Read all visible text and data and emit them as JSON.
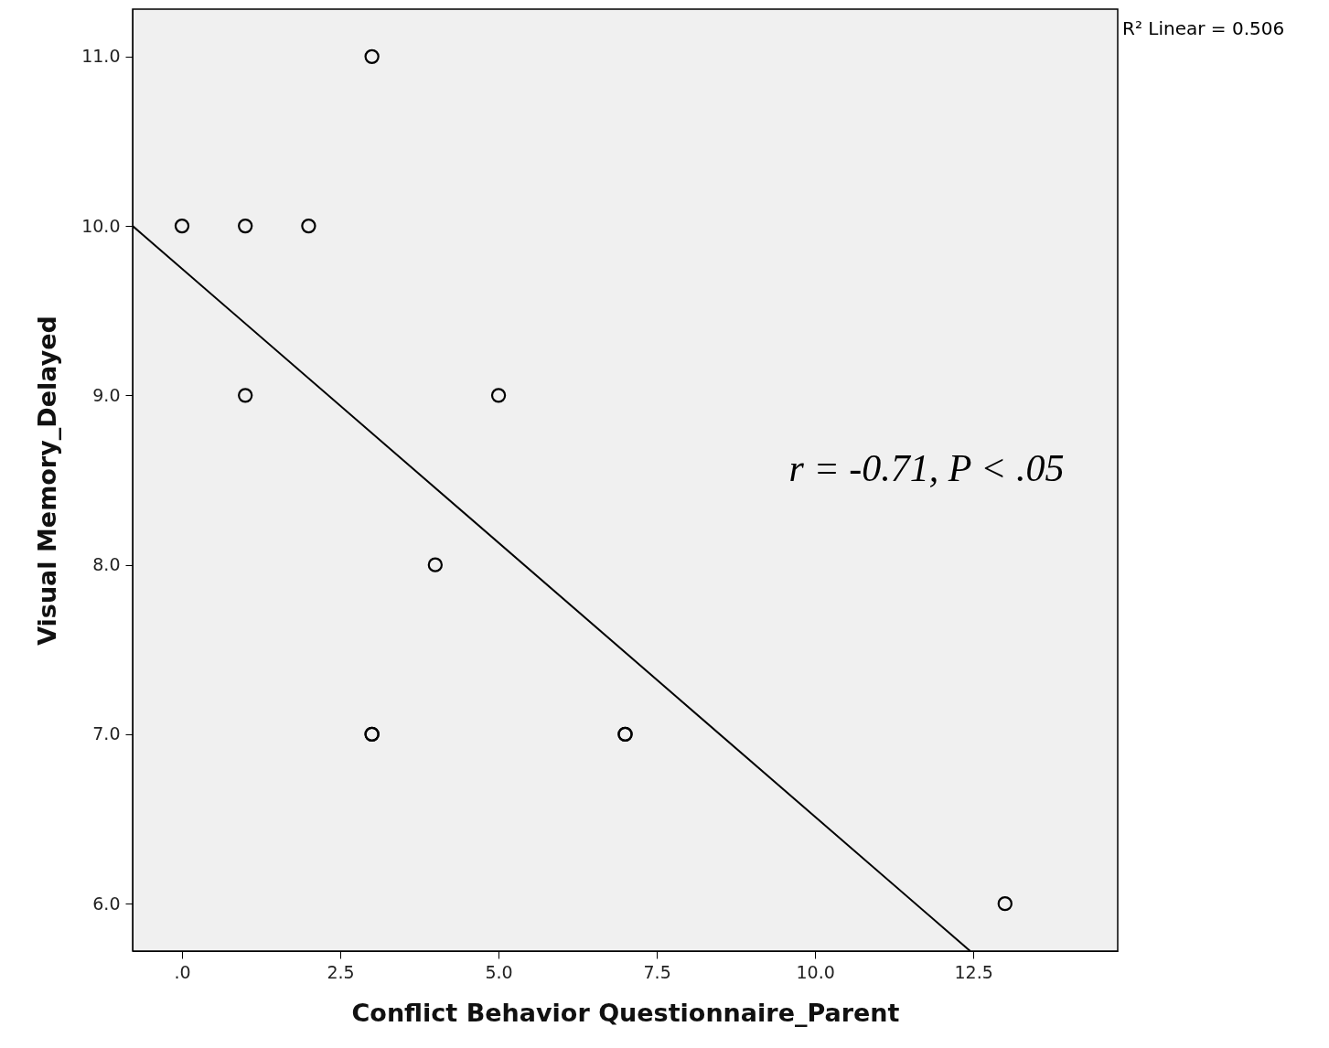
{
  "chart_data": {
    "type": "scatter",
    "xlabel": "Conflict Behavior Questionnaire_Parent",
    "ylabel": "Visual Memory_Delayed",
    "series": [
      {
        "marker": "circle",
        "color": "#000000",
        "x": [
          0,
          1,
          2,
          3,
          1,
          5,
          4,
          3,
          3,
          7,
          7,
          13
        ],
        "values": [
          10,
          10,
          10,
          11,
          9,
          9,
          8,
          7,
          7,
          7,
          7,
          6
        ]
      },
      {
        "type": "line",
        "color": "#000000",
        "x": [
          -0.78,
          12.45
        ],
        "values": [
          10.0,
          5.72
        ]
      }
    ],
    "xlim": [
      -0.78,
      14.78
    ],
    "ylim": [
      5.72,
      11.28
    ],
    "xticks": [
      {
        "value": 0,
        "label": ".0"
      },
      {
        "value": 2.5,
        "label": "2.5"
      },
      {
        "value": 5,
        "label": "5.0"
      },
      {
        "value": 7.5,
        "label": "7.5"
      },
      {
        "value": 10,
        "label": "10.0"
      },
      {
        "value": 12.5,
        "label": "12.5"
      }
    ],
    "yticks": [
      {
        "value": 6,
        "label": "6.0"
      },
      {
        "value": 7,
        "label": "7.0"
      },
      {
        "value": 8,
        "label": "8.0"
      },
      {
        "value": 9,
        "label": "9.0"
      },
      {
        "value": 10,
        "label": "10.0"
      },
      {
        "value": 11,
        "label": "11.0"
      }
    ],
    "annotations": [
      "r = -0.71, P < .05",
      "R² Linear = 0.506"
    ],
    "grid": false,
    "line_style": "solid"
  }
}
